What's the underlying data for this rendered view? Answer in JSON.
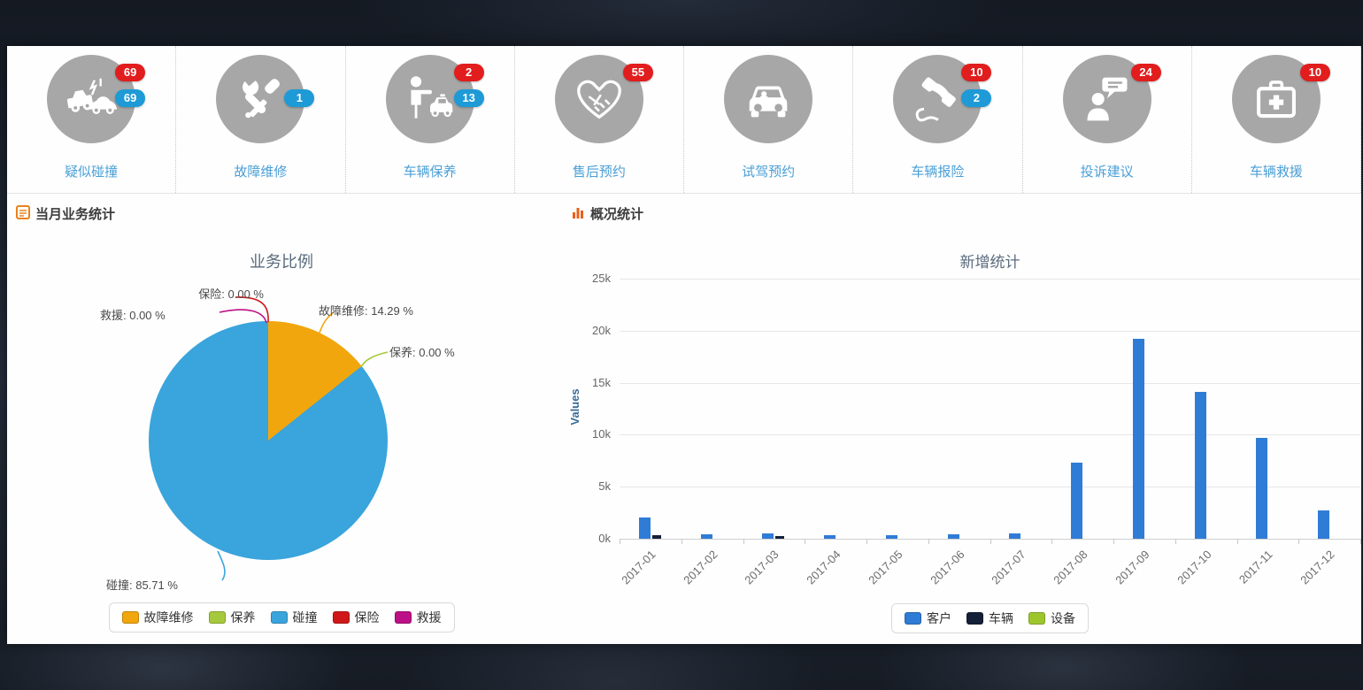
{
  "sections": {
    "left": {
      "title": "当月业务统计"
    },
    "right": {
      "title": "概况统计"
    }
  },
  "quick_actions": [
    {
      "label": "疑似碰撞",
      "icon": "car-crash",
      "badges": [
        {
          "value": "69",
          "type": "red"
        },
        {
          "value": "69",
          "type": "blue"
        }
      ]
    },
    {
      "label": "故障维修",
      "icon": "repair-tools",
      "badges": [
        {
          "value": "1",
          "type": "blue"
        }
      ]
    },
    {
      "label": "车辆保养",
      "icon": "person-car",
      "badges": [
        {
          "value": "2",
          "type": "red"
        },
        {
          "value": "13",
          "type": "blue"
        }
      ]
    },
    {
      "label": "售后预约",
      "icon": "handshake",
      "badges": [
        {
          "value": "55",
          "type": "red"
        }
      ]
    },
    {
      "label": "试驾预约",
      "icon": "car-front",
      "badges": []
    },
    {
      "label": "车辆报险",
      "icon": "phone-handset",
      "badges": [
        {
          "value": "10",
          "type": "red"
        },
        {
          "value": "2",
          "type": "blue"
        }
      ]
    },
    {
      "label": "投诉建议",
      "icon": "person-speech",
      "badges": [
        {
          "value": "24",
          "type": "red"
        }
      ]
    },
    {
      "label": "车辆救援",
      "icon": "first-aid-kit",
      "badges": [
        {
          "value": "10",
          "type": "red"
        }
      ]
    }
  ],
  "chart_data": [
    {
      "id": "business-ratio-pie",
      "type": "pie",
      "title": "业务比例",
      "slices": [
        {
          "label": "故障维修",
          "value": 14.29,
          "color": "#f2a60d"
        },
        {
          "label": "保养",
          "value": 0.0,
          "color": "#a6c93c"
        },
        {
          "label": "碰撞",
          "value": 85.71,
          "color": "#3aa4dc"
        },
        {
          "label": "保险",
          "value": 0.0,
          "color": "#d01818"
        },
        {
          "label": "救援",
          "value": 0.0,
          "color": "#bc1186"
        }
      ],
      "data_labels": {
        "baoxian": "保险: 0.00 %",
        "jiuyuan": "救援: 0.00 %",
        "guzhang": "故障维修: 14.29 %",
        "baoyang": "保养: 0.00 %",
        "pengzhuang": "碰撞: 85.71 %"
      },
      "legend": [
        "故障维修",
        "保养",
        "碰撞",
        "保险",
        "救援"
      ],
      "legend_position": "bottom"
    },
    {
      "id": "new-additions-bar",
      "type": "bar",
      "title": "新增统计",
      "ylabel": "Values",
      "ylim": [
        0,
        25000
      ],
      "y_tick_labels": [
        "25k",
        "20k",
        "15k",
        "10k",
        "5k",
        "0k"
      ],
      "grid": true,
      "categories": [
        "2017-01",
        "2017-02",
        "2017-03",
        "2017-04",
        "2017-05",
        "2017-06",
        "2017-07",
        "2017-08",
        "2017-09",
        "2017-10",
        "2017-11",
        "2017-12"
      ],
      "series": [
        {
          "name": "客户",
          "color": "#2f7cd6",
          "values": [
            2000,
            400,
            500,
            350,
            350,
            450,
            500,
            7300,
            19200,
            14100,
            9700,
            2700
          ]
        },
        {
          "name": "车辆",
          "color": "#141f38",
          "values": [
            300,
            0,
            250,
            0,
            0,
            0,
            0,
            0,
            0,
            0,
            0,
            0
          ]
        },
        {
          "name": "设备",
          "color": "#9dc62d",
          "values": [
            0,
            0,
            0,
            0,
            0,
            0,
            0,
            0,
            0,
            0,
            0,
            0
          ]
        }
      ],
      "legend_position": "bottom"
    }
  ]
}
